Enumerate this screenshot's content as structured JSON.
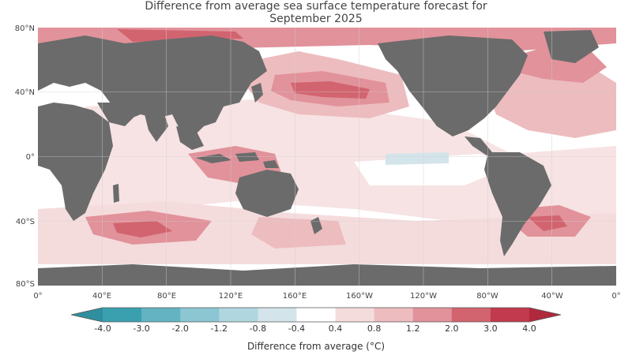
{
  "title_line1": "Difference from average sea surface temperature forecast for",
  "title_line2": "September 2025",
  "lat_labels": [
    "80°N",
    "40°N",
    "0°",
    "40°S",
    "80°S"
  ],
  "lon_labels": [
    "0°",
    "40°E",
    "80°E",
    "120°E",
    "160°E",
    "160°W",
    "120°W",
    "80°W",
    "40°W",
    "0°"
  ],
  "colorbar": {
    "ticks": [
      "-4.0",
      "-3.0",
      "-2.0",
      "-1.2",
      "-0.8",
      "-0.4",
      "0.4",
      "0.8",
      "1.2",
      "2.0",
      "3.0",
      "4.0"
    ],
    "label": "Difference from average (°C)",
    "colors": [
      "#3aa0b0",
      "#63b3c2",
      "#8bc6d2",
      "#b0d6df",
      "#d3e4ea",
      "#ffffff",
      "#f5dcdc",
      "#edbcbf",
      "#e1929a",
      "#d2646f",
      "#c23a4d"
    ]
  },
  "colors": {
    "land": "#6b6b6b",
    "ocean_neutral": "#ffffff"
  }
}
